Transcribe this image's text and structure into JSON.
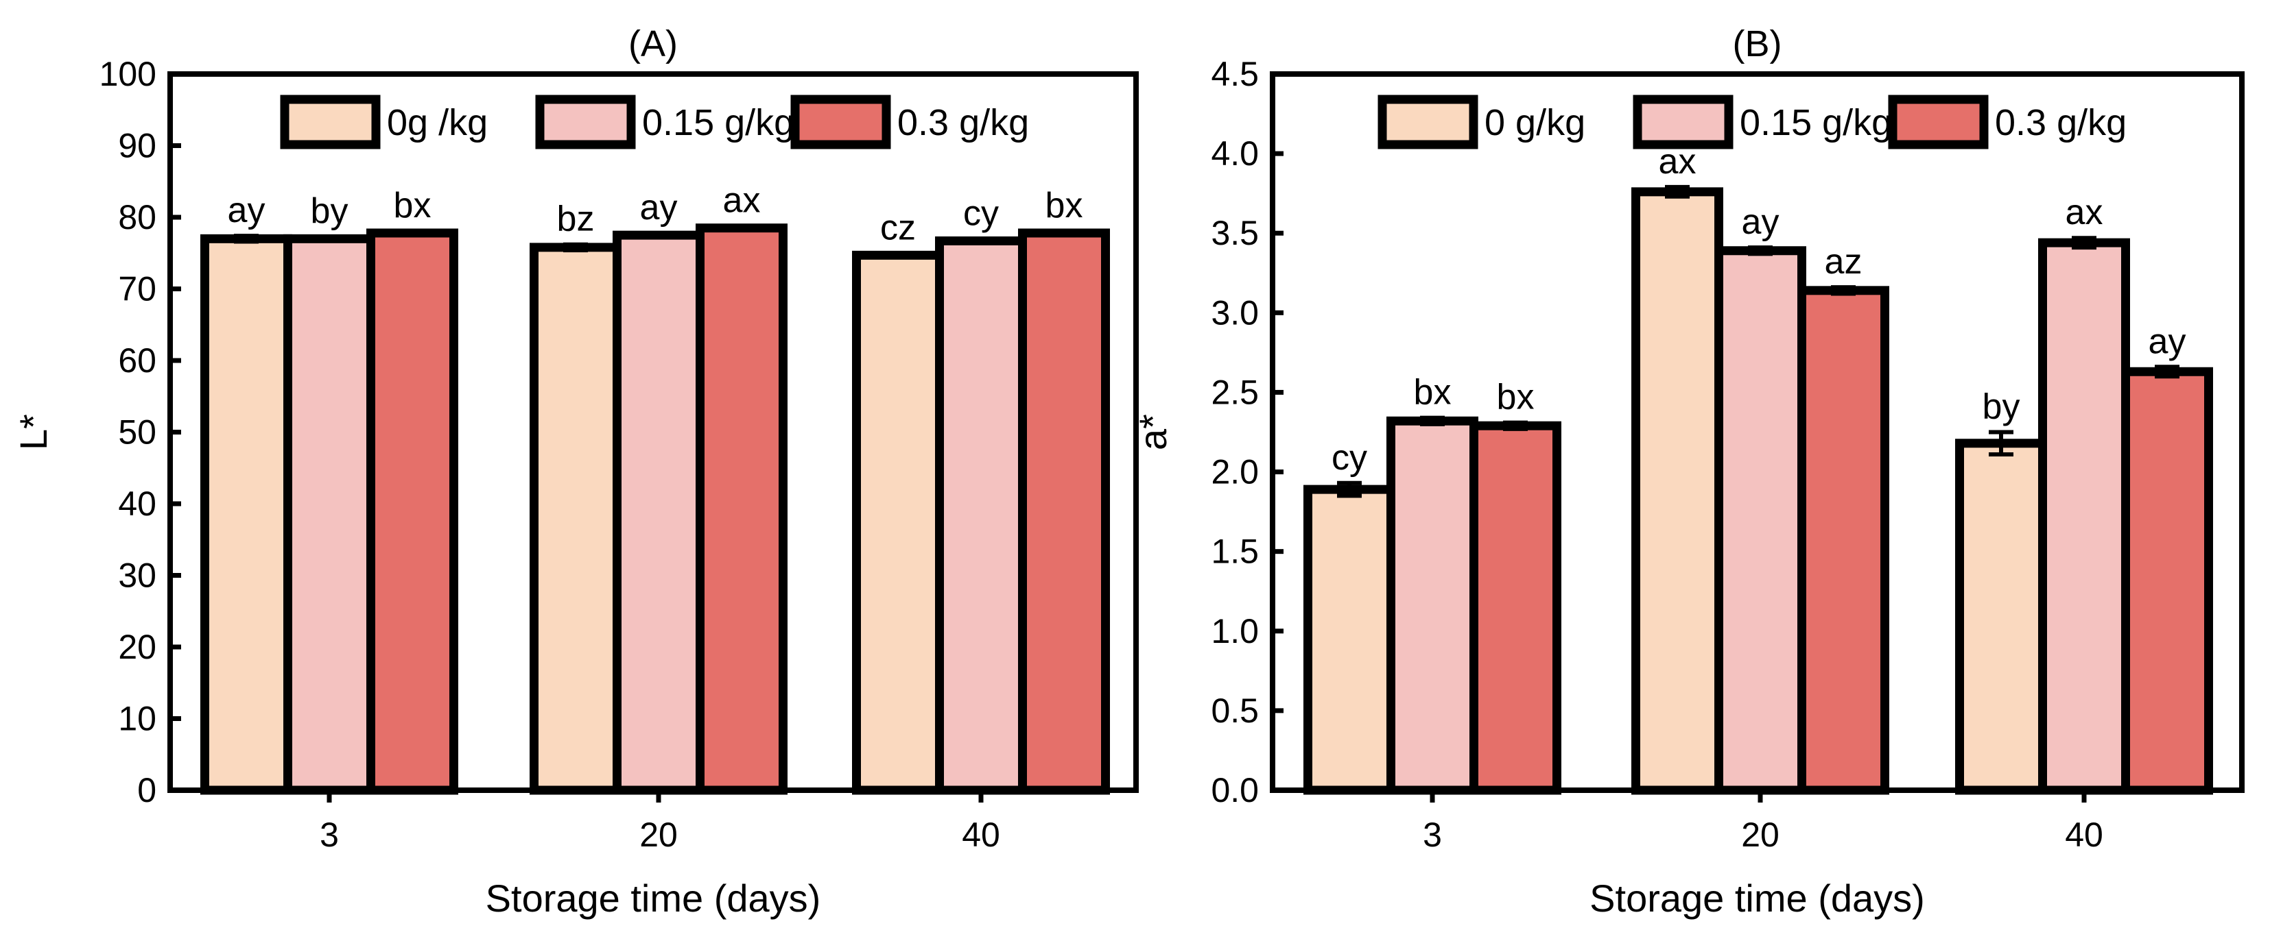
{
  "chart_data": [
    {
      "type": "bar",
      "title": "(A)",
      "xlabel": "Storage time (days)",
      "ylabel": "L*",
      "ylim": [
        0,
        100
      ],
      "yticks": [
        0,
        10,
        20,
        30,
        40,
        50,
        60,
        70,
        80,
        90,
        100
      ],
      "ytick_labels": [
        "0",
        "10",
        "20",
        "30",
        "40",
        "50",
        "60",
        "70",
        "80",
        "90",
        "100"
      ],
      "categories": [
        "3",
        "20",
        "40"
      ],
      "legend_position": "top-right",
      "series": [
        {
          "name": "0g /kg",
          "color": "#fad9bf",
          "values": [
            77.0,
            75.8,
            74.7
          ],
          "errors": [
            0.4,
            0.4,
            0.3
          ],
          "labels": [
            "ay",
            "bz",
            "cz"
          ]
        },
        {
          "name": "0.15 g/kg",
          "color": "#f4c2c0",
          "values": [
            77.0,
            77.5,
            76.7
          ],
          "errors": [
            0.3,
            0.3,
            0.3
          ],
          "labels": [
            "by",
            "ay",
            "cy"
          ]
        },
        {
          "name": "0.3 g/kg",
          "color": "#e5706a",
          "values": [
            77.8,
            78.5,
            77.8
          ],
          "errors": [
            0.3,
            0.3,
            0.3
          ],
          "labels": [
            "bx",
            "ax",
            "bx"
          ]
        }
      ]
    },
    {
      "type": "bar",
      "title": "(B)",
      "xlabel": "Storage time (days)",
      "ylabel": "a*",
      "ylim": [
        0,
        4.5
      ],
      "yticks": [
        0,
        0.5,
        1,
        1.5,
        2,
        2.5,
        3,
        3.5,
        4,
        4.5
      ],
      "ytick_labels": [
        "0.0",
        "0.5",
        "1.0",
        "1.5",
        "2.0",
        "2.5",
        "3.0",
        "3.5",
        "4.0",
        "4.5"
      ],
      "categories": [
        "3",
        "20",
        "40"
      ],
      "legend_position": "top-right",
      "series": [
        {
          "name": "0 g/kg",
          "color": "#fad9bf",
          "values": [
            1.89,
            3.76,
            2.18
          ],
          "errors": [
            0.04,
            0.03,
            0.07
          ],
          "labels": [
            "cy",
            "ax",
            "by"
          ]
        },
        {
          "name": "0.15 g/kg",
          "color": "#f4c2c0",
          "values": [
            2.32,
            3.39,
            3.44
          ],
          "errors": [
            0.02,
            0.02,
            0.03
          ],
          "labels": [
            "bx",
            "ay",
            "ax"
          ]
        },
        {
          "name": "0.3 g/kg",
          "color": "#e5706a",
          "values": [
            2.29,
            3.14,
            2.63
          ],
          "errors": [
            0.02,
            0.02,
            0.03
          ],
          "labels": [
            "bx",
            "az",
            "ay"
          ]
        }
      ]
    }
  ]
}
